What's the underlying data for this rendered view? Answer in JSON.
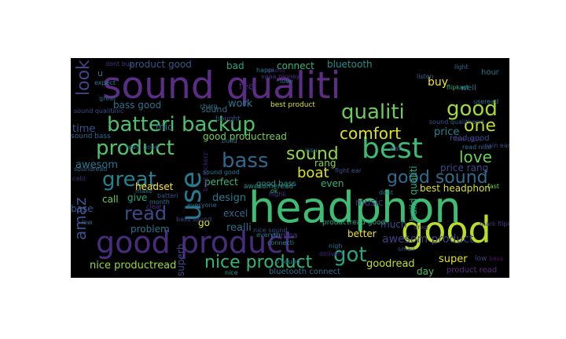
{
  "word_cloud": {
    "background": "#000000",
    "words": [
      {
        "text": "sound qualiti",
        "color": "#5b2d84"
      },
      {
        "text": "headphon",
        "color": "#3fbc73"
      },
      {
        "text": "good",
        "color": "#b8de29"
      },
      {
        "text": "good product",
        "color": "#472d7b"
      },
      {
        "text": "best",
        "color": "#3cbb75"
      },
      {
        "text": "batteri backup",
        "color": "#4ac16d"
      },
      {
        "text": "product",
        "color": "#52c569"
      },
      {
        "text": "use",
        "color": "#2a788e"
      },
      {
        "text": "qualiti",
        "color": "#6ccd5a"
      },
      {
        "text": "good",
        "color": "#a2da37"
      },
      {
        "text": "great",
        "color": "#25838e"
      },
      {
        "text": "bass",
        "color": "#31688e"
      },
      {
        "text": "one",
        "color": "#c0df25"
      },
      {
        "text": "read",
        "color": "#3e4a89"
      },
      {
        "text": "sound",
        "color": "#8fd744"
      },
      {
        "text": "good sound",
        "color": "#2f6c8e"
      },
      {
        "text": "nice product",
        "color": "#31b57b"
      },
      {
        "text": "got",
        "color": "#22a884"
      },
      {
        "text": "comfort",
        "color": "#dde318"
      },
      {
        "text": "love",
        "color": "#6ece58"
      },
      {
        "text": "look",
        "color": "#404688"
      },
      {
        "text": "boat",
        "color": "#dde318"
      },
      {
        "text": "amaz",
        "color": "#3b528b"
      },
      {
        "text": "product good",
        "color": "#38598c"
      },
      {
        "text": "bass good",
        "color": "#2d718e"
      },
      {
        "text": "good productread",
        "color": "#75d054"
      },
      {
        "text": "design",
        "color": "#287c8e"
      },
      {
        "text": "bluetooth",
        "color": "#21918c"
      },
      {
        "text": "connect",
        "color": "#35b779"
      },
      {
        "text": "buy",
        "color": "#f1e51d"
      },
      {
        "text": "mic",
        "color": "#2e6e8e"
      },
      {
        "text": "price",
        "color": "#26828e"
      },
      {
        "text": "excel",
        "color": "#30698e"
      },
      {
        "text": "awesom product",
        "color": "#433e85"
      },
      {
        "text": "build qualiti",
        "color": "#25ab82"
      },
      {
        "text": "nice productread",
        "color": "#9bd93c"
      },
      {
        "text": "bluetooth connect",
        "color": "#2c728e"
      },
      {
        "text": "goodread",
        "color": "#c2df23"
      },
      {
        "text": "super",
        "color": "#e5e419"
      },
      {
        "text": "better",
        "color": "#f1e51d"
      },
      {
        "text": "realli",
        "color": "#2e6f8e"
      },
      {
        "text": "much",
        "color": "#3d4e8a"
      },
      {
        "text": "perfect",
        "color": "#37b878"
      },
      {
        "text": "feel",
        "color": "#482576"
      },
      {
        "text": "work",
        "color": "#2a778e"
      },
      {
        "text": "bad",
        "color": "#21a685"
      },
      {
        "text": "even",
        "color": "#2fb47c"
      },
      {
        "text": "time",
        "color": "#3a548c"
      },
      {
        "text": "awesom",
        "color": "#2a768e"
      },
      {
        "text": "headset",
        "color": "#fde725"
      },
      {
        "text": "base",
        "color": "#38588c"
      },
      {
        "text": "call",
        "color": "#6ccd5a"
      },
      {
        "text": "give",
        "color": "#22a785"
      },
      {
        "text": "problem",
        "color": "#2c738e"
      },
      {
        "text": "go",
        "color": "#dde318"
      },
      {
        "text": "music",
        "color": "#472f7d"
      },
      {
        "text": "price rang",
        "color": "#3e4989"
      },
      {
        "text": "best headphon",
        "color": "#dde318"
      },
      {
        "text": "sound bass",
        "color": "#31678e"
      },
      {
        "text": "read good",
        "color": "#3b528b"
      },
      {
        "text": "productread good",
        "color": "#22a785"
      },
      {
        "text": "superb",
        "color": "#3f4788"
      },
      {
        "text": "day",
        "color": "#4ac16d"
      },
      {
        "text": "product read",
        "color": "#5b2d84"
      },
      {
        "text": "good bass",
        "color": "#21908d"
      },
      {
        "text": "rang",
        "color": "#89d548"
      },
      {
        "text": "well",
        "color": "#31688e"
      },
      {
        "text": "hour",
        "color": "#2c728e"
      },
      {
        "text": "u",
        "color": "#2a778e"
      },
      {
        "text": "best product",
        "color": "#d8e219"
      },
      {
        "text": "awesomeread",
        "color": "#21918c"
      },
      {
        "text": "purcha",
        "color": "#433d84"
      },
      {
        "text": "low",
        "color": "#414487"
      },
      {
        "text": "sound",
        "color": "#2e6e8e"
      },
      {
        "text": "ear",
        "color": "#414487"
      },
      {
        "text": "bought",
        "color": "#3b518b"
      },
      {
        "text": "charg",
        "color": "#26828e"
      },
      {
        "text": "expect",
        "color": "#287d8e"
      },
      {
        "text": "boat rockerz",
        "color": "#482475"
      },
      {
        "text": "sound qualitinic",
        "color": "#3d4e8a"
      },
      {
        "text": "flipkart",
        "color": "#22a785"
      },
      {
        "text": "read nice",
        "color": "#2d708e"
      },
      {
        "text": "realli good",
        "color": "#365d8d"
      },
      {
        "text": "dont buy",
        "color": "#46337f"
      },
      {
        "text": "light",
        "color": "#32658e"
      },
      {
        "text": "listen",
        "color": "#34608d"
      },
      {
        "text": "happi",
        "color": "#297a8e"
      },
      {
        "text": "everyth",
        "color": "#2a788e"
      },
      {
        "text": "vaaa money",
        "color": "#46307e"
      },
      {
        "text": "deliveri",
        "color": "#482475"
      },
      {
        "text": "batteri",
        "color": "#3b528b"
      },
      {
        "text": "month",
        "color": "#2d708e"
      },
      {
        "text": "make",
        "color": "#31688e"
      },
      {
        "text": "nice",
        "color": "#21918c"
      },
      {
        "text": "clear",
        "color": "#472c7a"
      },
      {
        "text": "pain ear",
        "color": "#3e4a89"
      },
      {
        "text": "fast",
        "color": "#6ece58"
      },
      {
        "text": "fight ear",
        "color": "#3b528b"
      },
      {
        "text": "bass sound",
        "color": "#3e4989"
      },
      {
        "text": "nigh",
        "color": "#2c728e"
      },
      {
        "text": "soundread",
        "color": "#31688e"
      },
      {
        "text": "love",
        "color": "#2a778e"
      },
      {
        "text": "issu",
        "color": "#2c728e"
      },
      {
        "text": "drag",
        "color": "#443a83"
      },
      {
        "text": "bass",
        "color": "#471164"
      },
      {
        "text": "low",
        "color": "#31688e"
      },
      {
        "text": "cabl",
        "color": "#482878"
      },
      {
        "text": "dont",
        "color": "#2c728e"
      },
      {
        "text": "ok",
        "color": "#35b779"
      },
      {
        "text": "sound",
        "color": "#482475"
      },
      {
        "text": "everyone",
        "color": "#2f6c8e"
      },
      {
        "text": "highli",
        "color": "#443983"
      },
      {
        "text": "sound qualitiread",
        "color": "#365c8d"
      },
      {
        "text": "sound good",
        "color": "#287c8e"
      },
      {
        "text": "connecti",
        "color": "#25838e"
      },
      {
        "text": "great",
        "color": "#2f6b8e"
      },
      {
        "text": "small",
        "color": "#3e4a89"
      },
      {
        "text": "p sound",
        "color": "#2a788e"
      },
      {
        "text": "low bass",
        "color": "#472f7d"
      },
      {
        "text": "nice sound",
        "color": "#3b518b"
      },
      {
        "text": "mark flipkart",
        "color": "#46327e"
      },
      {
        "text": "build",
        "color": "#2a778e"
      },
      {
        "text": "useread",
        "color": "#2d718e"
      },
      {
        "text": "well",
        "color": "#31688e"
      }
    ]
  }
}
